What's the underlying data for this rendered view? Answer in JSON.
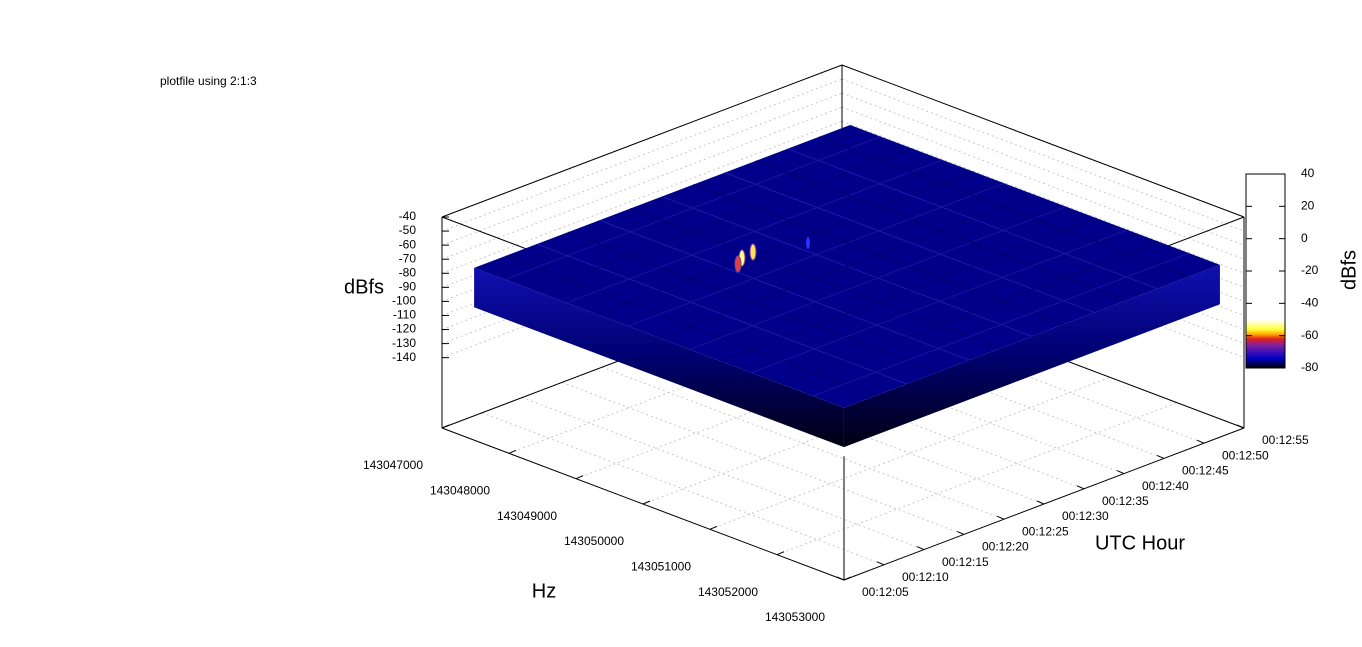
{
  "chart_data": {
    "type": "surface",
    "key": "plotfile using 2:1:3",
    "xlabel": "Hz",
    "ylabel": "UTC Hour",
    "zlabel": "dBfs",
    "cblabel": "dBfs",
    "xlim": [
      143047000,
      143053000
    ],
    "xticks": [
      143047000,
      143048000,
      143049000,
      143050000,
      143051000,
      143052000,
      143053000
    ],
    "ylim": [
      725,
      775
    ],
    "yticks": [
      {
        "value": 725,
        "label": "00:12:05"
      },
      {
        "value": 730,
        "label": "00:12:10"
      },
      {
        "value": 735,
        "label": "00:12:15"
      },
      {
        "value": 740,
        "label": "00:12:20"
      },
      {
        "value": 745,
        "label": "00:12:25"
      },
      {
        "value": 750,
        "label": "00:12:30"
      },
      {
        "value": 755,
        "label": "00:12:35"
      },
      {
        "value": 760,
        "label": "00:12:40"
      },
      {
        "value": 765,
        "label": "00:12:45"
      },
      {
        "value": 770,
        "label": "00:12:50"
      },
      {
        "value": 775,
        "label": "00:12:55"
      }
    ],
    "zlim": [
      -140,
      -40
    ],
    "zticks": [
      -40,
      -50,
      -60,
      -70,
      -80,
      -90,
      -100,
      -110,
      -120,
      -130,
      -140
    ],
    "ticslevel": 0.5,
    "cblim": [
      -80,
      40
    ],
    "cbticks": [
      40,
      20,
      0,
      -20,
      -40,
      -60,
      -80
    ],
    "palette": [
      {
        "value": -80,
        "color": "#000000"
      },
      {
        "value": -74,
        "color": "#0000c8"
      },
      {
        "value": -66,
        "color": "#8020a0"
      },
      {
        "value": -62,
        "color": "#e02020"
      },
      {
        "value": -59,
        "color": "#ffb000"
      },
      {
        "value": -56,
        "color": "#ffff40"
      },
      {
        "value": -50,
        "color": "#ffffff"
      }
    ],
    "grid": true
  }
}
